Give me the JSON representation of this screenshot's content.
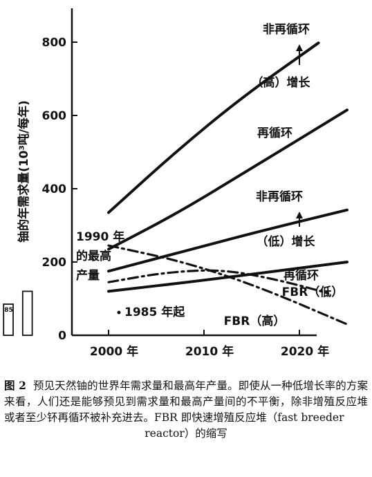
{
  "chart_data": {
    "type": "line",
    "ylabel": "铀的年需求量(10³吨/每年)",
    "y_ticks": [
      0,
      200,
      400,
      600,
      800
    ],
    "x_ticks": [
      "2000 年",
      "2010 年",
      "2020 年"
    ],
    "xlim": [
      1985,
      2026
    ],
    "ylim": [
      0,
      900
    ],
    "series": [
      {
        "name": "非再循环",
        "style": "solid",
        "x": [
          2000,
          2007,
          2014,
          2022
        ],
        "y": [
          335,
          500,
          650,
          798
        ]
      },
      {
        "name": "再循环",
        "style": "solid",
        "x": [
          2000,
          2007,
          2014,
          2025
        ],
        "y": [
          235,
          330,
          440,
          615
        ]
      },
      {
        "name": "非再循环",
        "style": "solid",
        "x": [
          2000,
          2008,
          2016,
          2025
        ],
        "y": [
          175,
          230,
          285,
          342
        ]
      },
      {
        "name": "再循环",
        "style": "solid",
        "x": [
          2000,
          2010,
          2025
        ],
        "y": [
          120,
          150,
          200
        ]
      },
      {
        "name": "FBR（低）",
        "style": "dashdot",
        "x": [
          2000,
          2006,
          2012,
          2018,
          2023
        ],
        "y": [
          145,
          172,
          180,
          150,
          115
        ]
      },
      {
        "name": "FBR（高）",
        "style": "dashdot",
        "x": [
          2000,
          2008,
          2016,
          2025
        ],
        "y": [
          245,
          200,
          130,
          30
        ]
      }
    ],
    "history_bars": {
      "years": [
        1985,
        1987,
        1989,
        1991
      ],
      "values": [
        27,
        56,
        85,
        120
      ],
      "labels": [
        "27",
        "56",
        "85",
        ""
      ]
    },
    "annotations": {
      "high_growth": "（高）增长",
      "low_growth": "（低）增长",
      "peak_label": [
        "1990 年",
        "的最高",
        "产量"
      ],
      "start_label": "1985 年起"
    }
  },
  "caption": {
    "figure": "图 2",
    "text": "预见天然铀的世界年需求量和最高年产量。即使从一种低增长率的方案来看，人们还是能够预见到需求量和最高产量间的不平衡，除非增殖反应堆或者至少钚再循环被补充进去。FBR 即快速增殖反应堆（fast breeder",
    "last_line": "reactor）的缩写"
  }
}
